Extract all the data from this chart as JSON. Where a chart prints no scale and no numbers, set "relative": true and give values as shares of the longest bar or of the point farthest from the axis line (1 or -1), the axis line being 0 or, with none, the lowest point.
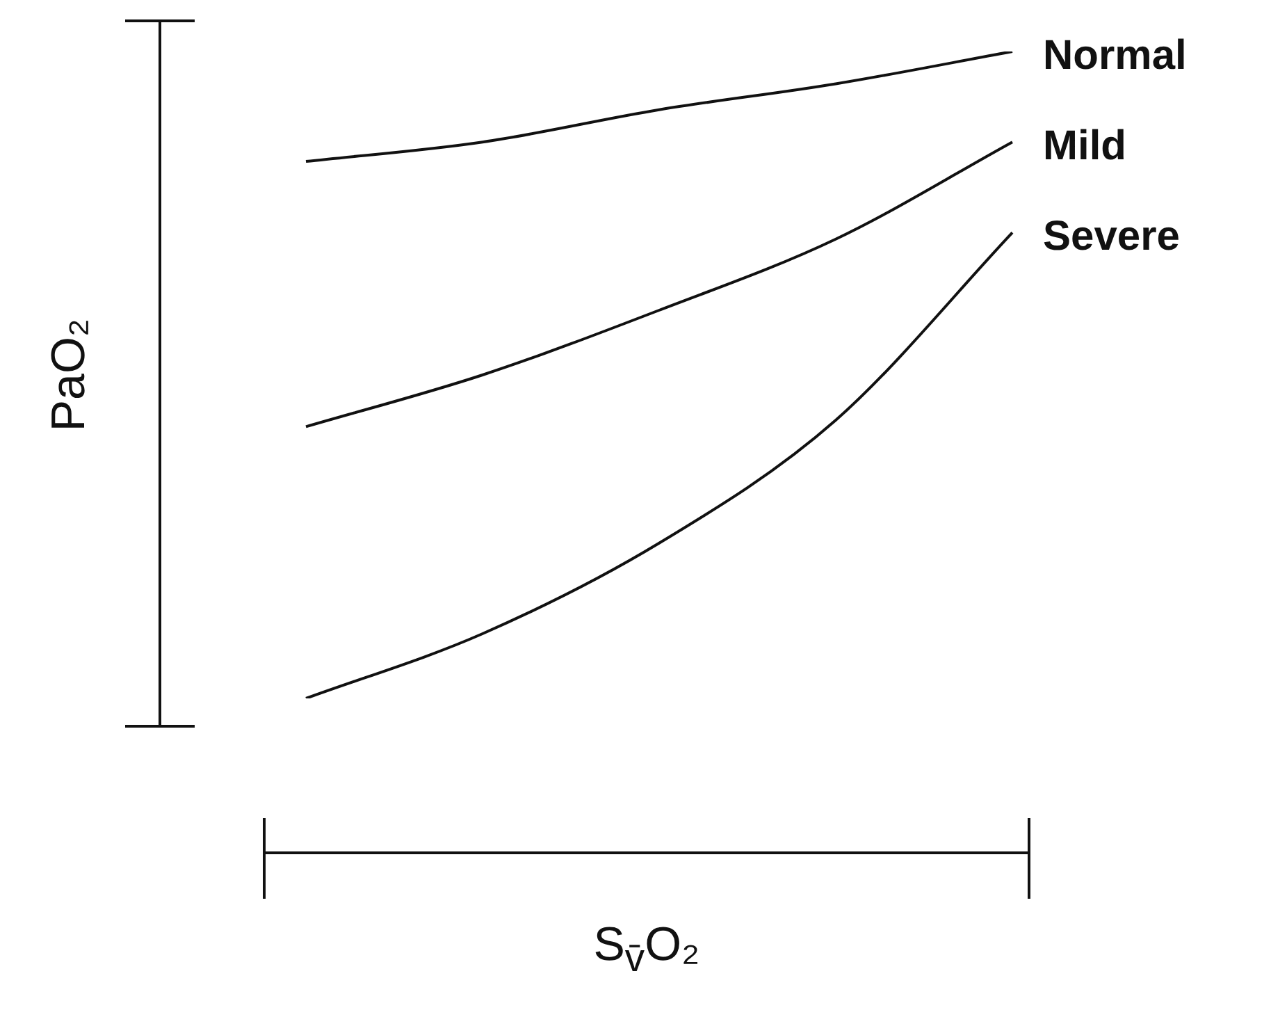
{
  "chart_data": {
    "type": "line",
    "relative": true,
    "xlabel": "S$_{v̄}$O₂",
    "ylabel": "PaO₂",
    "categories": [
      null,
      null,
      null,
      null,
      null
    ],
    "series": [
      {
        "name": "Normal",
        "color": "#111111",
        "values": [
          0.83,
          0.86,
          0.91,
          0.95,
          1
        ]
      },
      {
        "name": "Mild",
        "color": "#111111",
        "values": [
          0.42,
          0.5,
          0.6,
          0.71,
          0.86
        ]
      },
      {
        "name": "Severe",
        "color": "#111111",
        "values": [
          0,
          0.1,
          0.24,
          0.43,
          0.72
        ]
      }
    ]
  }
}
